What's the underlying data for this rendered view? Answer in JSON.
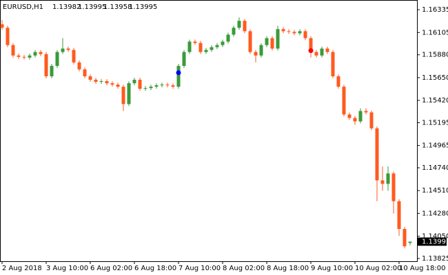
{
  "chart_data": {
    "type": "candlestick",
    "symbol": "EURUSD,H1",
    "categories": [
      "2 Aug 2018",
      null,
      null,
      null,
      null,
      null,
      null,
      null,
      "3 Aug 10:00",
      null,
      null,
      null,
      null,
      null,
      null,
      null,
      "6 Aug 02:00",
      null,
      null,
      null,
      null,
      null,
      null,
      null,
      "6 Aug 18:00",
      null,
      null,
      null,
      null,
      null,
      null,
      null,
      "7 Aug 10:00",
      null,
      null,
      null,
      null,
      null,
      null,
      null,
      "8 Aug 02:00",
      null,
      null,
      null,
      null,
      null,
      null,
      null,
      "8 Aug 18:00",
      null,
      null,
      null,
      null,
      null,
      null,
      null,
      "9 Aug 10:00",
      null,
      null,
      null,
      null,
      null,
      null,
      null,
      "10 Aug 02:00",
      null,
      null,
      null,
      null,
      null,
      null,
      null,
      "10 Aug 18:00",
      null,
      null
    ],
    "ohlc": {
      "open": [
        1.16188,
        1.16153,
        1.15978,
        1.15873,
        1.15859,
        1.15852,
        1.15873,
        1.15908,
        1.15887,
        1.15663,
        1.15768,
        1.15908,
        1.15943,
        1.15929,
        1.15803,
        1.15733,
        1.15663,
        1.15628,
        1.15607,
        1.15614,
        1.15593,
        1.15579,
        1.15558,
        1.15383,
        1.15593,
        1.15628,
        1.15537,
        1.15544,
        1.15558,
        1.15572,
        1.15579,
        1.15572,
        1.15558,
        1.15768,
        1.15908,
        1.16013,
        1.15999,
        1.15908,
        1.15929,
        1.15957,
        1.15978,
        1.16013,
        1.16083,
        1.16153,
        1.16223,
        1.16118,
        1.15908,
        1.15873,
        1.15978,
        1.16048,
        1.15943,
        1.16139,
        1.16118,
        1.16111,
        1.16097,
        1.16118,
        1.16048,
        1.15908,
        1.15873,
        1.15943,
        1.15908,
        1.15663,
        1.15558,
        1.15278,
        1.15243,
        1.15208,
        1.15313,
        1.15299,
        1.15138,
        1.14613,
        1.14578,
        1.14683,
        1.14403,
        1.14123,
        1.13982
      ],
      "high": [
        1.1623,
        1.16173,
        1.15998,
        1.15893,
        1.15879,
        1.15893,
        1.15928,
        1.15928,
        1.15907,
        1.15788,
        1.15928,
        1.16048,
        1.15963,
        1.15949,
        1.15823,
        1.15753,
        1.15683,
        1.15648,
        1.15634,
        1.15634,
        1.15613,
        1.15599,
        1.15578,
        1.15613,
        1.15648,
        1.15648,
        1.15564,
        1.15578,
        1.15592,
        1.15599,
        1.15599,
        1.15592,
        1.15788,
        1.15928,
        1.16033,
        1.16033,
        1.16019,
        1.15949,
        1.15977,
        1.15998,
        1.16033,
        1.16103,
        1.16173,
        1.16258,
        1.16243,
        1.16138,
        1.15928,
        1.15998,
        1.16068,
        1.16068,
        1.16173,
        1.16159,
        1.16138,
        1.16131,
        1.16138,
        1.16138,
        1.16068,
        1.15928,
        1.15963,
        1.15963,
        1.15928,
        1.15683,
        1.15578,
        1.15298,
        1.15263,
        1.1534,
        1.1534,
        1.15319,
        1.15158,
        1.14753,
        1.14753,
        1.14703,
        1.14423,
        1.14143,
        1.13995
      ],
      "low": [
        1.16133,
        1.15958,
        1.15853,
        1.15839,
        1.15832,
        1.15832,
        1.15853,
        1.15867,
        1.15643,
        1.15643,
        1.15748,
        1.15888,
        1.15909,
        1.15783,
        1.15713,
        1.15643,
        1.15608,
        1.15587,
        1.15587,
        1.15573,
        1.15559,
        1.15538,
        1.15313,
        1.15363,
        1.15573,
        1.15517,
        1.15517,
        1.15524,
        1.15538,
        1.15552,
        1.15552,
        1.15538,
        1.15538,
        1.15748,
        1.15888,
        1.15979,
        1.15888,
        1.15888,
        1.15909,
        1.15937,
        1.15958,
        1.15993,
        1.16063,
        1.16133,
        1.16098,
        1.15888,
        1.15803,
        1.15853,
        1.15958,
        1.15923,
        1.15923,
        1.16098,
        1.16091,
        1.16077,
        1.16077,
        1.16028,
        1.15853,
        1.15853,
        1.15853,
        1.15888,
        1.15643,
        1.15538,
        1.15258,
        1.15223,
        1.15173,
        1.15188,
        1.15279,
        1.15118,
        1.14403,
        1.14508,
        1.14508,
        1.14278,
        1.14053,
        1.13928,
        1.13958
      ],
      "close": [
        1.16153,
        1.15978,
        1.15873,
        1.15859,
        1.15852,
        1.15873,
        1.15908,
        1.15887,
        1.15663,
        1.15768,
        1.15908,
        1.15943,
        1.15929,
        1.15803,
        1.15733,
        1.15663,
        1.15628,
        1.15607,
        1.15614,
        1.15593,
        1.15579,
        1.15558,
        1.15383,
        1.15593,
        1.15628,
        1.15537,
        1.15544,
        1.15558,
        1.15572,
        1.15579,
        1.15572,
        1.15558,
        1.15768,
        1.15908,
        1.16013,
        1.15999,
        1.15908,
        1.15929,
        1.15957,
        1.15978,
        1.16013,
        1.16083,
        1.16153,
        1.16223,
        1.16118,
        1.15908,
        1.15873,
        1.15978,
        1.16048,
        1.15943,
        1.16139,
        1.16118,
        1.16111,
        1.16097,
        1.16118,
        1.16048,
        1.15908,
        1.15873,
        1.15943,
        1.15908,
        1.15663,
        1.15558,
        1.15278,
        1.15243,
        1.15208,
        1.15313,
        1.15299,
        1.15138,
        1.14613,
        1.14578,
        1.14683,
        1.14403,
        1.14123,
        1.13948,
        1.13995
      ]
    },
    "up_color": "#3a9a3a",
    "down_color": "#ff5a1f",
    "markers": [
      {
        "x": 32,
        "y": 1.15699,
        "color": "#0000ff"
      },
      {
        "x": 56,
        "y": 1.15922,
        "color": "#ff0000"
      }
    ],
    "ylim": [
      1.13797,
      1.16419
    ],
    "yticks": [
      1.16335,
      1.16105,
      {
        "value": 1.1588,
        "label": "1.15880"
      },
      {
        "value": 1.1565,
        "label": "1.15650"
      },
      {
        "value": 1.1542,
        "label": "1.15420"
      },
      1.15195,
      1.14965,
      {
        "value": 1.1474,
        "label": "1.14740"
      },
      {
        "value": 1.1451,
        "label": "1.14510"
      },
      {
        "value": 1.1428,
        "label": "1.14280"
      },
      {
        "value": 1.1405,
        "label": "1.14050"
      },
      1.13825
    ]
  }
}
